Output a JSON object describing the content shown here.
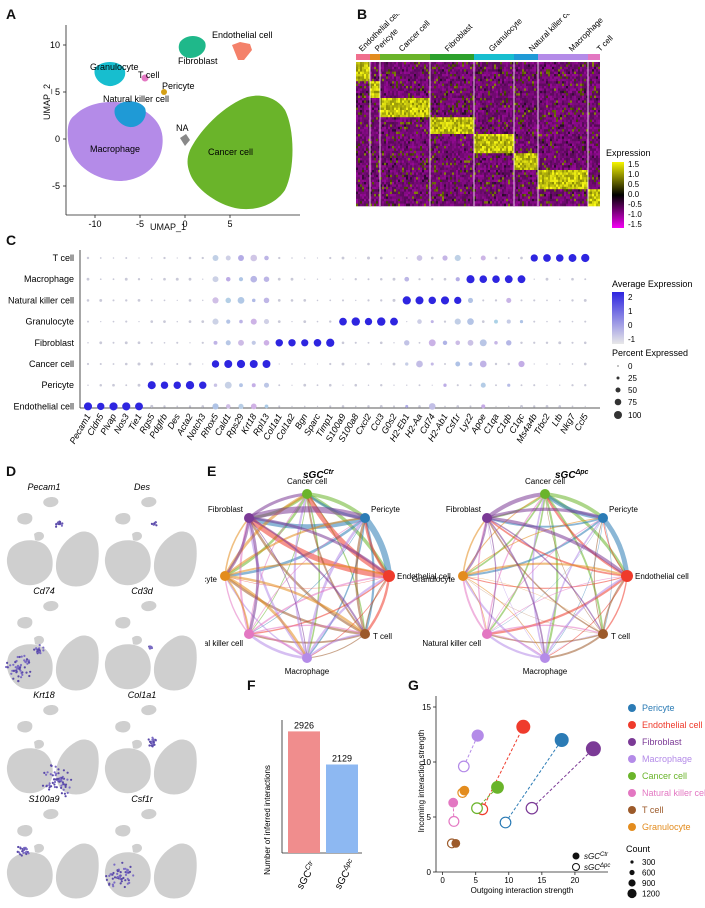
{
  "panels": [
    "A",
    "B",
    "C",
    "D",
    "E",
    "F",
    "G"
  ],
  "colors": {
    "endothelial": "#ef3b2c",
    "pericyte": "#2b7bb5",
    "cancer": "#6ab42a",
    "fibroblast": "#7b3a96",
    "granulocyte": "#e38c1e",
    "natural_killer": "#e377c2",
    "macrophage": "#b48be8",
    "t_cell": "#9c5a2a",
    "ctr_bar": "#f08d8d",
    "dpc_bar": "#8db8f2"
  },
  "umap": {
    "xlabel": "UMAP_1",
    "ylabel": "UMAP_2",
    "xticks": [
      "-10",
      "-5",
      "0",
      "5"
    ],
    "yticks": [
      "10",
      "5",
      "0",
      "-5"
    ],
    "labels": [
      "Endothelial cell",
      "Fibroblast",
      "Granulocyte",
      "T cell",
      "Pericyte",
      "Natural killer cell",
      "NA",
      "Macrophage",
      "Cancer cell"
    ]
  },
  "heatmap": {
    "groups": [
      "Endothelial cell",
      "Pericyte",
      "Cancer cell",
      "Fibroblast",
      "Granulocyte",
      "Natural killer cell",
      "Macrophage",
      "T cell"
    ],
    "legend_title": "Expression",
    "legend_ticks": [
      "1.5",
      "1.0",
      "0.5",
      "0.0",
      "-0.5",
      "-1.0",
      "-1.5"
    ],
    "range": [
      -1.5,
      1.5
    ]
  },
  "dotplot": {
    "rows": [
      "T cell",
      "Macrophage",
      "Natural killer cell",
      "Granulocyte",
      "Fibroblast",
      "Cancer cell",
      "Pericyte",
      "Endothelial cell"
    ],
    "genes": [
      "Pecam1",
      "Cldn5",
      "Plvap",
      "Nos3",
      "Tie1",
      "Rgs5",
      "Pdgfrb",
      "Des",
      "Acta2",
      "Notch3",
      "Rhox5",
      "Cald1",
      "Rps29",
      "Krt18",
      "Rpl13",
      "Col1a1",
      "Col1a2",
      "Bgn",
      "Sparc",
      "Timp1",
      "S100a9",
      "S100a8",
      "Cxcl2",
      "Ccl3",
      "G0s2",
      "H2-Eb1",
      "H2-Aa",
      "Cd74",
      "H2-Ab1",
      "Csf1r",
      "Lyz2",
      "Apoe",
      "C1qa",
      "C1qb",
      "C1qc",
      "Ms4a4b",
      "Trbc2",
      "Ltb",
      "Nkg7",
      "Ccl5"
    ],
    "legend_avg_title": "Average Expression",
    "legend_avg_ticks": [
      "2",
      "1",
      "0",
      "-1"
    ],
    "legend_pct_title": "Percent Expressed",
    "legend_pct_ticks": [
      "0",
      "25",
      "50",
      "75",
      "100"
    ]
  },
  "featureplots": [
    "Pecam1",
    "Des",
    "Cd74",
    "Cd3d",
    "Krt18",
    "Col1a1",
    "S100a9",
    "Csf1r"
  ],
  "network": {
    "titles": [
      {
        "base": "sGC",
        "sup": "Ctr"
      },
      {
        "base": "sGC",
        "sup": "Δpc"
      }
    ],
    "nodes": [
      "Cancer cell",
      "Pericyte",
      "Endothelial cell",
      "T cell",
      "Macrophage",
      "Natural killer cell",
      "Granulocyte",
      "Fibroblast"
    ]
  },
  "barplot": {
    "ylabel": "Number of inferred interactions",
    "categories": [
      {
        "base": "sGC",
        "sup": "Ctr"
      },
      {
        "base": "sGC",
        "sup": "Δpc"
      }
    ],
    "values": [
      "2926",
      "2129"
    ]
  },
  "chart_data": [
    {
      "type": "bar",
      "categories": [
        "sGC Ctr",
        "sGC Δpc"
      ],
      "values": [
        2926,
        2129
      ],
      "title": "",
      "xlabel": "",
      "ylabel": "Number of inferred interactions",
      "ylim": [
        0,
        3200
      ]
    },
    {
      "type": "scatter",
      "xlabel": "Outgoing interaction strength",
      "ylabel": "Incoming interaction strength",
      "xlim": [
        -1,
        25
      ],
      "ylim": [
        0,
        16
      ],
      "xticks": [
        "0",
        "5",
        "10",
        "15",
        "20"
      ],
      "yticks": [
        "0",
        "5",
        "10",
        "15"
      ],
      "series": [
        {
          "name": "Pericyte",
          "color": "#2b7bb5",
          "ctr": [
            18.0,
            12.0,
            900
          ],
          "dpc": [
            9.5,
            4.5,
            400
          ]
        },
        {
          "name": "Endothelial cell",
          "color": "#ef3b2c",
          "ctr": [
            12.2,
            13.2,
            900
          ],
          "dpc": [
            6.0,
            5.7,
            400
          ]
        },
        {
          "name": "Fibroblast",
          "color": "#7b3a96",
          "ctr": [
            22.8,
            11.2,
            1100
          ],
          "dpc": [
            13.5,
            5.8,
            500
          ]
        },
        {
          "name": "Macrophage",
          "color": "#b48be8",
          "ctr": [
            5.3,
            12.4,
            600
          ],
          "dpc": [
            3.2,
            9.6,
            400
          ]
        },
        {
          "name": "Cancer cell",
          "color": "#6ab42a",
          "ctr": [
            8.3,
            7.7,
            700
          ],
          "dpc": [
            5.2,
            5.8,
            400
          ]
        },
        {
          "name": "Natural killer cell",
          "color": "#e377c2",
          "ctr": [
            1.6,
            6.3,
            300
          ],
          "dpc": [
            1.7,
            4.6,
            300
          ]
        },
        {
          "name": "T cell",
          "color": "#9c5a2a",
          "ctr": [
            2.0,
            2.6,
            200
          ],
          "dpc": [
            1.4,
            2.6,
            200
          ]
        },
        {
          "name": "Granulocyte",
          "color": "#e38c1e",
          "ctr": [
            3.3,
            7.4,
            300
          ],
          "dpc": [
            3.0,
            7.2,
            250
          ]
        }
      ],
      "legend_markers": [
        {
          "base": "sGC",
          "sup": "Ctr"
        },
        {
          "base": "sGC",
          "sup": "Δpc"
        }
      ],
      "count_title": "Count",
      "count_ticks": [
        "300",
        "600",
        "900",
        "1200"
      ]
    }
  ]
}
